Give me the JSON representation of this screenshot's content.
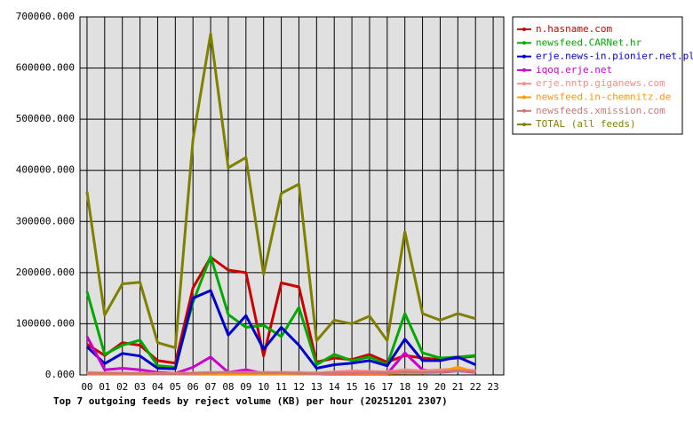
{
  "chart_data": {
    "type": "line",
    "title": "Top 7 outgoing feeds by reject volume (KB) per hour (20251201 2307)",
    "categories": [
      "00",
      "01",
      "02",
      "03",
      "04",
      "05",
      "06",
      "07",
      "08",
      "09",
      "10",
      "11",
      "12",
      "13",
      "14",
      "15",
      "16",
      "17",
      "18",
      "19",
      "20",
      "21",
      "22",
      "23"
    ],
    "ylim": [
      0,
      700000
    ],
    "yticks": [
      {
        "value": 0,
        "label": "0.000"
      },
      {
        "value": 100000,
        "label": "100000.000"
      },
      {
        "value": 200000,
        "label": "200000.000"
      },
      {
        "value": 300000,
        "label": "300000.000"
      },
      {
        "value": 400000,
        "label": "400000.000"
      },
      {
        "value": 500000,
        "label": "500000.000"
      },
      {
        "value": 600000,
        "label": "600000.000"
      },
      {
        "value": 700000,
        "label": "700000.000"
      }
    ],
    "grid": true,
    "series": [
      {
        "name": "n.hasname.com",
        "color": "#cc0000",
        "values": [
          60000,
          38000,
          63000,
          58000,
          28000,
          23000,
          170000,
          230000,
          205000,
          200000,
          37000,
          180000,
          172000,
          25000,
          33000,
          30000,
          40000,
          25000,
          38000,
          33000,
          30000,
          33000,
          37000,
          null
        ]
      },
      {
        "name": "newsfeed.CARNet.hr",
        "color": "#00aa00",
        "values": [
          163000,
          40000,
          58000,
          68000,
          18000,
          15000,
          142000,
          232000,
          118000,
          93000,
          97000,
          75000,
          132000,
          20000,
          40000,
          28000,
          35000,
          20000,
          120000,
          43000,
          33000,
          35000,
          38000,
          null
        ]
      },
      {
        "name": "erje.news-in.pionier.net.pl",
        "color": "#0000cc",
        "values": [
          55000,
          22000,
          42000,
          37000,
          13000,
          12000,
          150000,
          165000,
          78000,
          116000,
          50000,
          93000,
          58000,
          13000,
          20000,
          23000,
          28000,
          18000,
          70000,
          28000,
          28000,
          35000,
          20000,
          null
        ]
      },
      {
        "name": "iqoq.erje.net",
        "color": "#cc00cc",
        "values": [
          75000,
          10000,
          13000,
          10000,
          5000,
          3000,
          15000,
          35000,
          5000,
          10000,
          3000,
          2000,
          2000,
          2000,
          2000,
          2000,
          2000,
          2000,
          43000,
          10000,
          5000,
          8000,
          5000,
          null
        ]
      },
      {
        "name": "erje.nntp.giganews.com",
        "color": "#ff8888",
        "values": [
          5000,
          4000,
          4000,
          3000,
          3000,
          3000,
          4000,
          5000,
          5000,
          5000,
          5000,
          5000,
          5000,
          4000,
          6000,
          8000,
          7000,
          6000,
          10000,
          8000,
          10000,
          12000,
          8000,
          null
        ]
      },
      {
        "name": "newsfeed.in-chemnitz.de",
        "color": "#ff9900",
        "values": [
          2000,
          2000,
          2000,
          2000,
          2000,
          2000,
          2000,
          2000,
          2000,
          2000,
          2000,
          2000,
          2000,
          2000,
          3000,
          3000,
          3000,
          3000,
          4000,
          4000,
          5000,
          15000,
          5000,
          null
        ]
      },
      {
        "name": "newsfeeds.xmission.com",
        "color": "#cc7777",
        "values": [
          3000,
          3000,
          3000,
          3000,
          2000,
          2000,
          3000,
          4000,
          5000,
          4000,
          4000,
          4000,
          3000,
          2000,
          4000,
          4000,
          5000,
          4000,
          6000,
          5000,
          6000,
          8000,
          6000,
          null
        ]
      },
      {
        "name": "TOTAL (all feeds)",
        "color": "#808000",
        "values": [
          358000,
          117000,
          178000,
          181000,
          63000,
          53000,
          460000,
          667000,
          405000,
          425000,
          197000,
          355000,
          373000,
          67000,
          107000,
          100000,
          115000,
          67000,
          280000,
          120000,
          107000,
          120000,
          110000,
          null
        ]
      }
    ]
  }
}
